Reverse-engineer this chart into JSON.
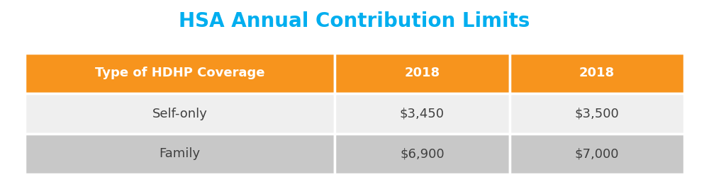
{
  "title": "HSA Annual Contribution Limits",
  "title_color": "#00AEEF",
  "title_fontsize": 20,
  "header_bg_color": "#F7941D",
  "header_text_color": "#FFFFFF",
  "header_labels": [
    "Type of HDHP Coverage",
    "2018",
    "2018"
  ],
  "row1_bg": "#EFEFEF",
  "row2_bg": "#C8C8C8",
  "row_text_color": "#404040",
  "rows": [
    [
      "Self-only",
      "$3,450",
      "$3,500"
    ],
    [
      "Family",
      "$6,900",
      "$7,000"
    ]
  ],
  "background_color": "#FFFFFF",
  "divider_color": "#FFFFFF",
  "header_fontsize": 13,
  "row_fontsize": 13,
  "fig_width": 10.0,
  "fig_height": 2.5,
  "dpi": 100
}
